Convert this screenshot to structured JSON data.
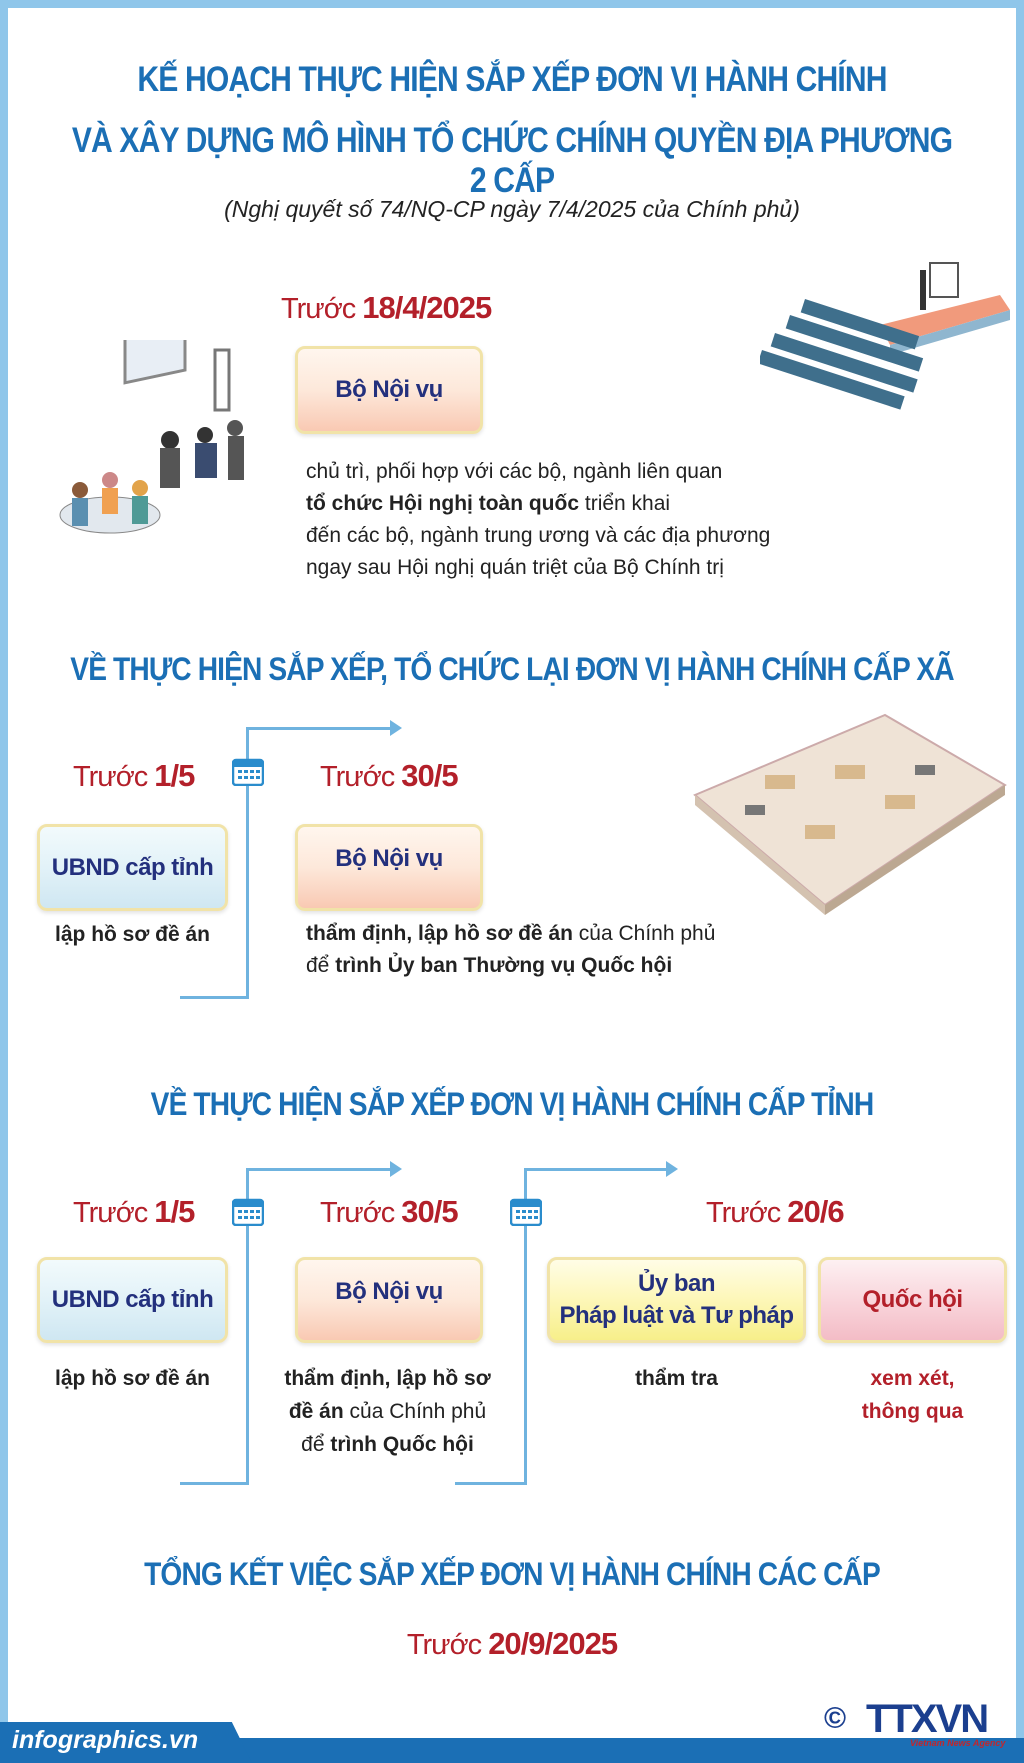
{
  "header": {
    "title_line1": "KẾ HOẠCH THỰC HIỆN SẮP XẾP ĐƠN VỊ HÀNH CHÍNH",
    "title_line2": "VÀ XÂY DỰNG MÔ HÌNH TỔ CHỨC CHÍNH QUYỀN ĐỊA PHƯƠNG 2 CẤP",
    "subtitle": "(Nghị quyết số 74/NQ-CP ngày 7/4/2025 của Chính phủ)"
  },
  "prefix": "Trước",
  "step1": {
    "date": "18/4/2025",
    "box": "Bộ Nội vụ",
    "lines": [
      [
        "chủ trì, phối hợp với các bộ, ngành liên quan",
        ""
      ],
      [
        "",
        "tổ chức Hội nghị toàn quốc",
        " triển khai"
      ],
      [
        "đến các bộ, ngành trung ương và các địa phương"
      ],
      [
        "ngay sau Hội nghị quán triệt của Bộ Chính trị"
      ]
    ],
    "l1": "chủ trì, phối hợp với các bộ, ngành liên quan",
    "l2b": "tổ chức Hội nghị toàn quốc",
    "l2": " triển khai",
    "l3": "đến các bộ, ngành trung ương và các địa phương",
    "l4": "ngay sau Hội nghị quán triệt của Bộ Chính trị"
  },
  "section_commune": {
    "title": "VỀ THỰC HIỆN SẮP XẾP, TỔ CHỨC LẠI ĐƠN VỊ HÀNH CHÍNH CẤP XÃ",
    "a": {
      "date": "1/5",
      "box": "UBND cấp tỉnh",
      "desc": "lập hồ sơ đề án"
    },
    "b": {
      "date": "30/5",
      "box": "Bộ Nội vụ",
      "d1b": "thẩm định, lập hồ sơ đề án",
      "d1": " của Chính phủ",
      "d2": "để ",
      "d2b": "trình Ủy ban Thường vụ Quốc hội"
    }
  },
  "section_province": {
    "title": "VỀ THỰC HIỆN SẮP XẾP ĐƠN VỊ HÀNH CHÍNH CẤP TỈNH",
    "a": {
      "date": "1/5",
      "box": "UBND cấp tỉnh",
      "desc": "lập hồ sơ đề án"
    },
    "b": {
      "date": "30/5",
      "box": "Bộ Nội vụ",
      "d1b": "thẩm định, lập hồ sơ",
      "d2b": "đề án",
      "d2": " của Chính phủ",
      "d3": "để ",
      "d3b": "trình Quốc hội"
    },
    "c": {
      "date": "20/6",
      "box1_l1": "Ủy ban",
      "box1_l2": "Pháp luật và Tư pháp",
      "desc1": "thẩm tra",
      "box2": "Quốc hội",
      "desc2_l1": "xem xét,",
      "desc2_l2": "thông qua"
    }
  },
  "section_summary": {
    "title": "TỔNG KẾT VIỆC SẮP XẾP ĐƠN VỊ HÀNH CHÍNH CÁC CẤP",
    "date": "20/9/2025"
  },
  "footer": {
    "site": "infographics.vn",
    "copyright": "©",
    "logo": "TTXVN",
    "logo_sub": "Vietnam News Agency"
  },
  "colors": {
    "title_blue": "#1b6fb5",
    "date_red": "#b3202a",
    "box_text": "#23307d",
    "line": "#6fb3df"
  }
}
